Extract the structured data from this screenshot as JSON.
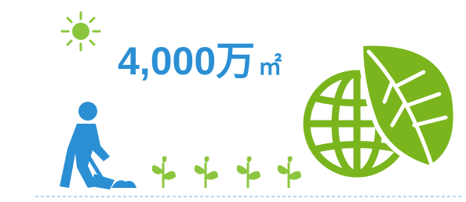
{
  "headline": {
    "figure": "4,000万",
    "unit": "㎡"
  }
}
